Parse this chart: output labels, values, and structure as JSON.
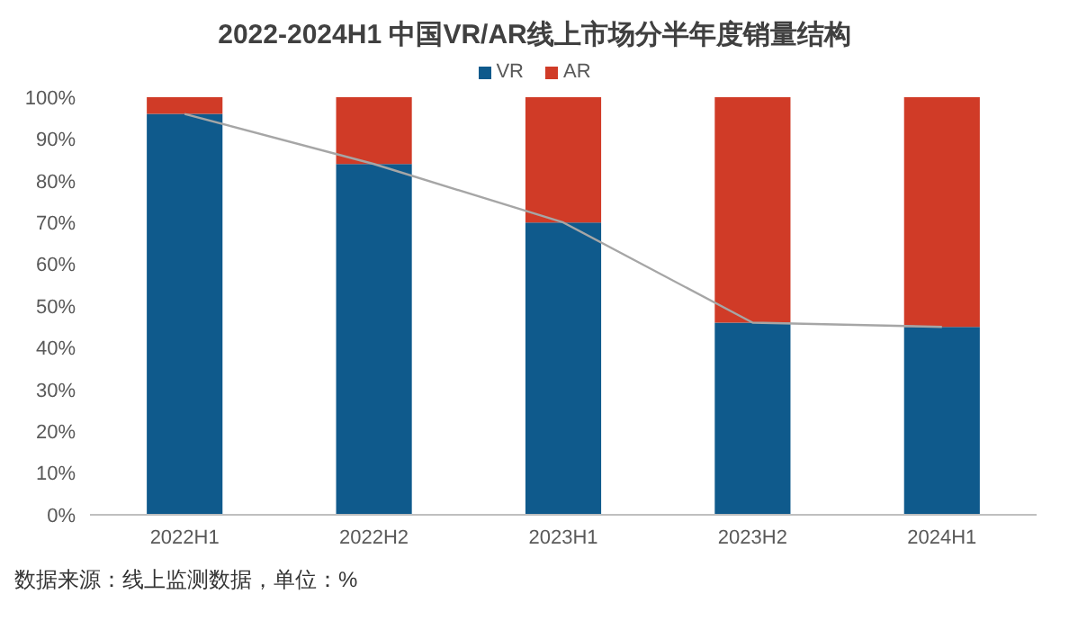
{
  "chart_data": {
    "type": "bar",
    "title": "2022-2024H1 中国VR/AR线上市场分半年度销量结构",
    "categories": [
      "2022H1",
      "2022H2",
      "2023H1",
      "2023H2",
      "2024H1"
    ],
    "stacked": true,
    "series": [
      {
        "name": "VR",
        "color": "#0f5a8c",
        "values": [
          96,
          84,
          70,
          46,
          45
        ]
      },
      {
        "name": "AR",
        "color": "#d03b27",
        "values": [
          4,
          16,
          30,
          54,
          55
        ]
      },
      {
        "type": "line",
        "color": "#a6a6a6",
        "values": [
          96,
          84,
          70,
          46,
          45
        ]
      }
    ],
    "ylim": [
      0,
      100
    ],
    "yticks": [
      {
        "value": 0,
        "label": "0%"
      },
      {
        "value": 10,
        "label": "10%"
      },
      {
        "value": 20,
        "label": "20%"
      },
      {
        "value": 30,
        "label": "30%"
      },
      {
        "value": 40,
        "label": "40%"
      },
      {
        "value": 50,
        "label": "50%"
      },
      {
        "value": 60,
        "label": "60%"
      },
      {
        "value": 70,
        "label": "70%"
      },
      {
        "value": 80,
        "label": "80%"
      },
      {
        "value": 90,
        "label": "90%"
      },
      {
        "value": 100,
        "label": "100%"
      }
    ],
    "legend": "top",
    "marker": "none",
    "annotations": [
      "数据来源：线上监测数据，单位：%"
    ]
  }
}
